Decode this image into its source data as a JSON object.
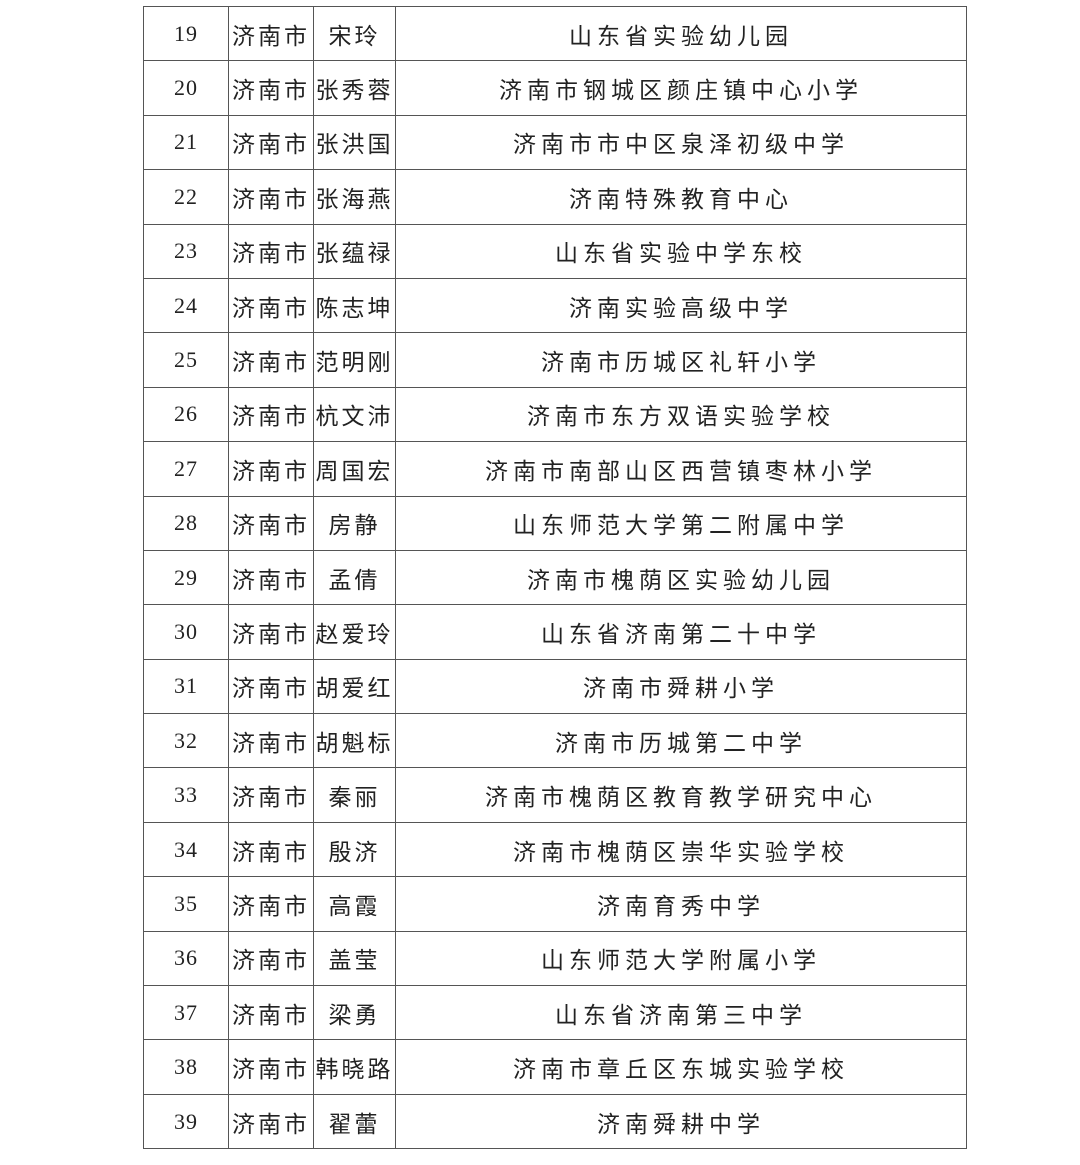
{
  "rows": [
    {
      "no": "19",
      "city": "济南市",
      "name": "宋玲",
      "school": "山东省实验幼儿园"
    },
    {
      "no": "20",
      "city": "济南市",
      "name": "张秀蓉",
      "school": "济南市钢城区颜庄镇中心小学"
    },
    {
      "no": "21",
      "city": "济南市",
      "name": "张洪国",
      "school": "济南市市中区泉泽初级中学"
    },
    {
      "no": "22",
      "city": "济南市",
      "name": "张海燕",
      "school": "济南特殊教育中心"
    },
    {
      "no": "23",
      "city": "济南市",
      "name": "张蕴禄",
      "school": "山东省实验中学东校"
    },
    {
      "no": "24",
      "city": "济南市",
      "name": "陈志坤",
      "school": "济南实验高级中学"
    },
    {
      "no": "25",
      "city": "济南市",
      "name": "范明刚",
      "school": "济南市历城区礼轩小学"
    },
    {
      "no": "26",
      "city": "济南市",
      "name": "杭文沛",
      "school": "济南市东方双语实验学校"
    },
    {
      "no": "27",
      "city": "济南市",
      "name": "周国宏",
      "school": "济南市南部山区西营镇枣林小学"
    },
    {
      "no": "28",
      "city": "济南市",
      "name": "房静",
      "school": "山东师范大学第二附属中学"
    },
    {
      "no": "29",
      "city": "济南市",
      "name": "孟倩",
      "school": "济南市槐荫区实验幼儿园"
    },
    {
      "no": "30",
      "city": "济南市",
      "name": "赵爱玲",
      "school": "山东省济南第二十中学"
    },
    {
      "no": "31",
      "city": "济南市",
      "name": "胡爱红",
      "school": "济南市舜耕小学"
    },
    {
      "no": "32",
      "city": "济南市",
      "name": "胡魁标",
      "school": "济南市历城第二中学"
    },
    {
      "no": "33",
      "city": "济南市",
      "name": "秦丽",
      "school": "济南市槐荫区教育教学研究中心"
    },
    {
      "no": "34",
      "city": "济南市",
      "name": "殷济",
      "school": "济南市槐荫区崇华实验学校"
    },
    {
      "no": "35",
      "city": "济南市",
      "name": "高霞",
      "school": "济南育秀中学"
    },
    {
      "no": "36",
      "city": "济南市",
      "name": "盖莹",
      "school": "山东师范大学附属小学"
    },
    {
      "no": "37",
      "city": "济南市",
      "name": "梁勇",
      "school": "山东省济南第三中学"
    },
    {
      "no": "38",
      "city": "济南市",
      "name": "韩晓路",
      "school": "济南市章丘区东城实验学校"
    },
    {
      "no": "39",
      "city": "济南市",
      "name": "翟蕾",
      "school": "济南舜耕中学"
    }
  ]
}
